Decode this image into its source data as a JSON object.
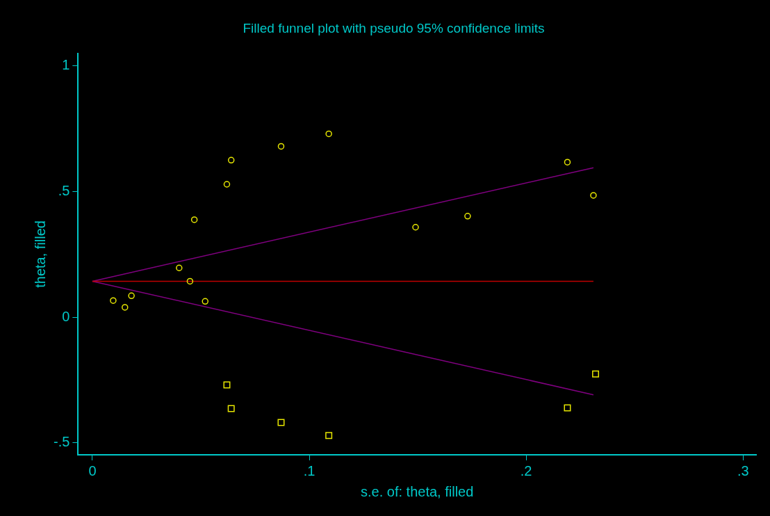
{
  "chart_data": {
    "type": "scatter",
    "title": "Filled funnel plot with pseudo 95% confidence limits",
    "xlabel": "s.e. of: theta, filled",
    "ylabel": "theta, filled",
    "xlim": [
      -0.0066,
      0.306
    ],
    "ylim": [
      -0.548,
      1.05
    ],
    "xticks": [
      0,
      {
        "value": 0.1,
        "label": ".1"
      },
      {
        "value": 0.2,
        "label": ".2"
      },
      {
        "value": 0.3,
        "label": ".3"
      }
    ],
    "yticks": [
      {
        "value": -0.5,
        "label": "-.5"
      },
      0,
      {
        "value": 0.5,
        "label": ".5"
      },
      1
    ],
    "series": [
      {
        "type": "scatter",
        "marker": "circle",
        "color": "#e6e600",
        "x": [
          0.0096,
          0.015,
          0.018,
          0.04,
          0.045,
          0.052,
          0.047,
          0.062,
          0.064,
          0.087,
          0.109,
          0.149,
          0.173,
          0.219,
          0.231
        ],
        "values": [
          0.066,
          0.039,
          0.085,
          0.196,
          0.143,
          0.063,
          0.388,
          0.529,
          0.625,
          0.68,
          0.73,
          0.358,
          0.402,
          0.617,
          0.485
        ]
      },
      {
        "type": "scatter",
        "marker": "square",
        "color": "#e6e600",
        "x": [
          0.062,
          0.064,
          0.087,
          0.109,
          0.219,
          0.232
        ],
        "values": [
          -0.27,
          -0.364,
          -0.419,
          -0.471,
          -0.361,
          -0.226
        ]
      },
      {
        "type": "line",
        "marker": "none",
        "color": "#c00000",
        "x": [
          0,
          0.231
        ],
        "values": [
          0.143,
          0.143
        ]
      },
      {
        "type": "line",
        "marker": "none",
        "color": "#800080",
        "x": [
          0,
          0.231
        ],
        "values": [
          0.143,
          0.595
        ]
      },
      {
        "type": "line",
        "marker": "none",
        "color": "#800080",
        "x": [
          0,
          0.231
        ],
        "values": [
          0.143,
          -0.309
        ]
      }
    ]
  }
}
